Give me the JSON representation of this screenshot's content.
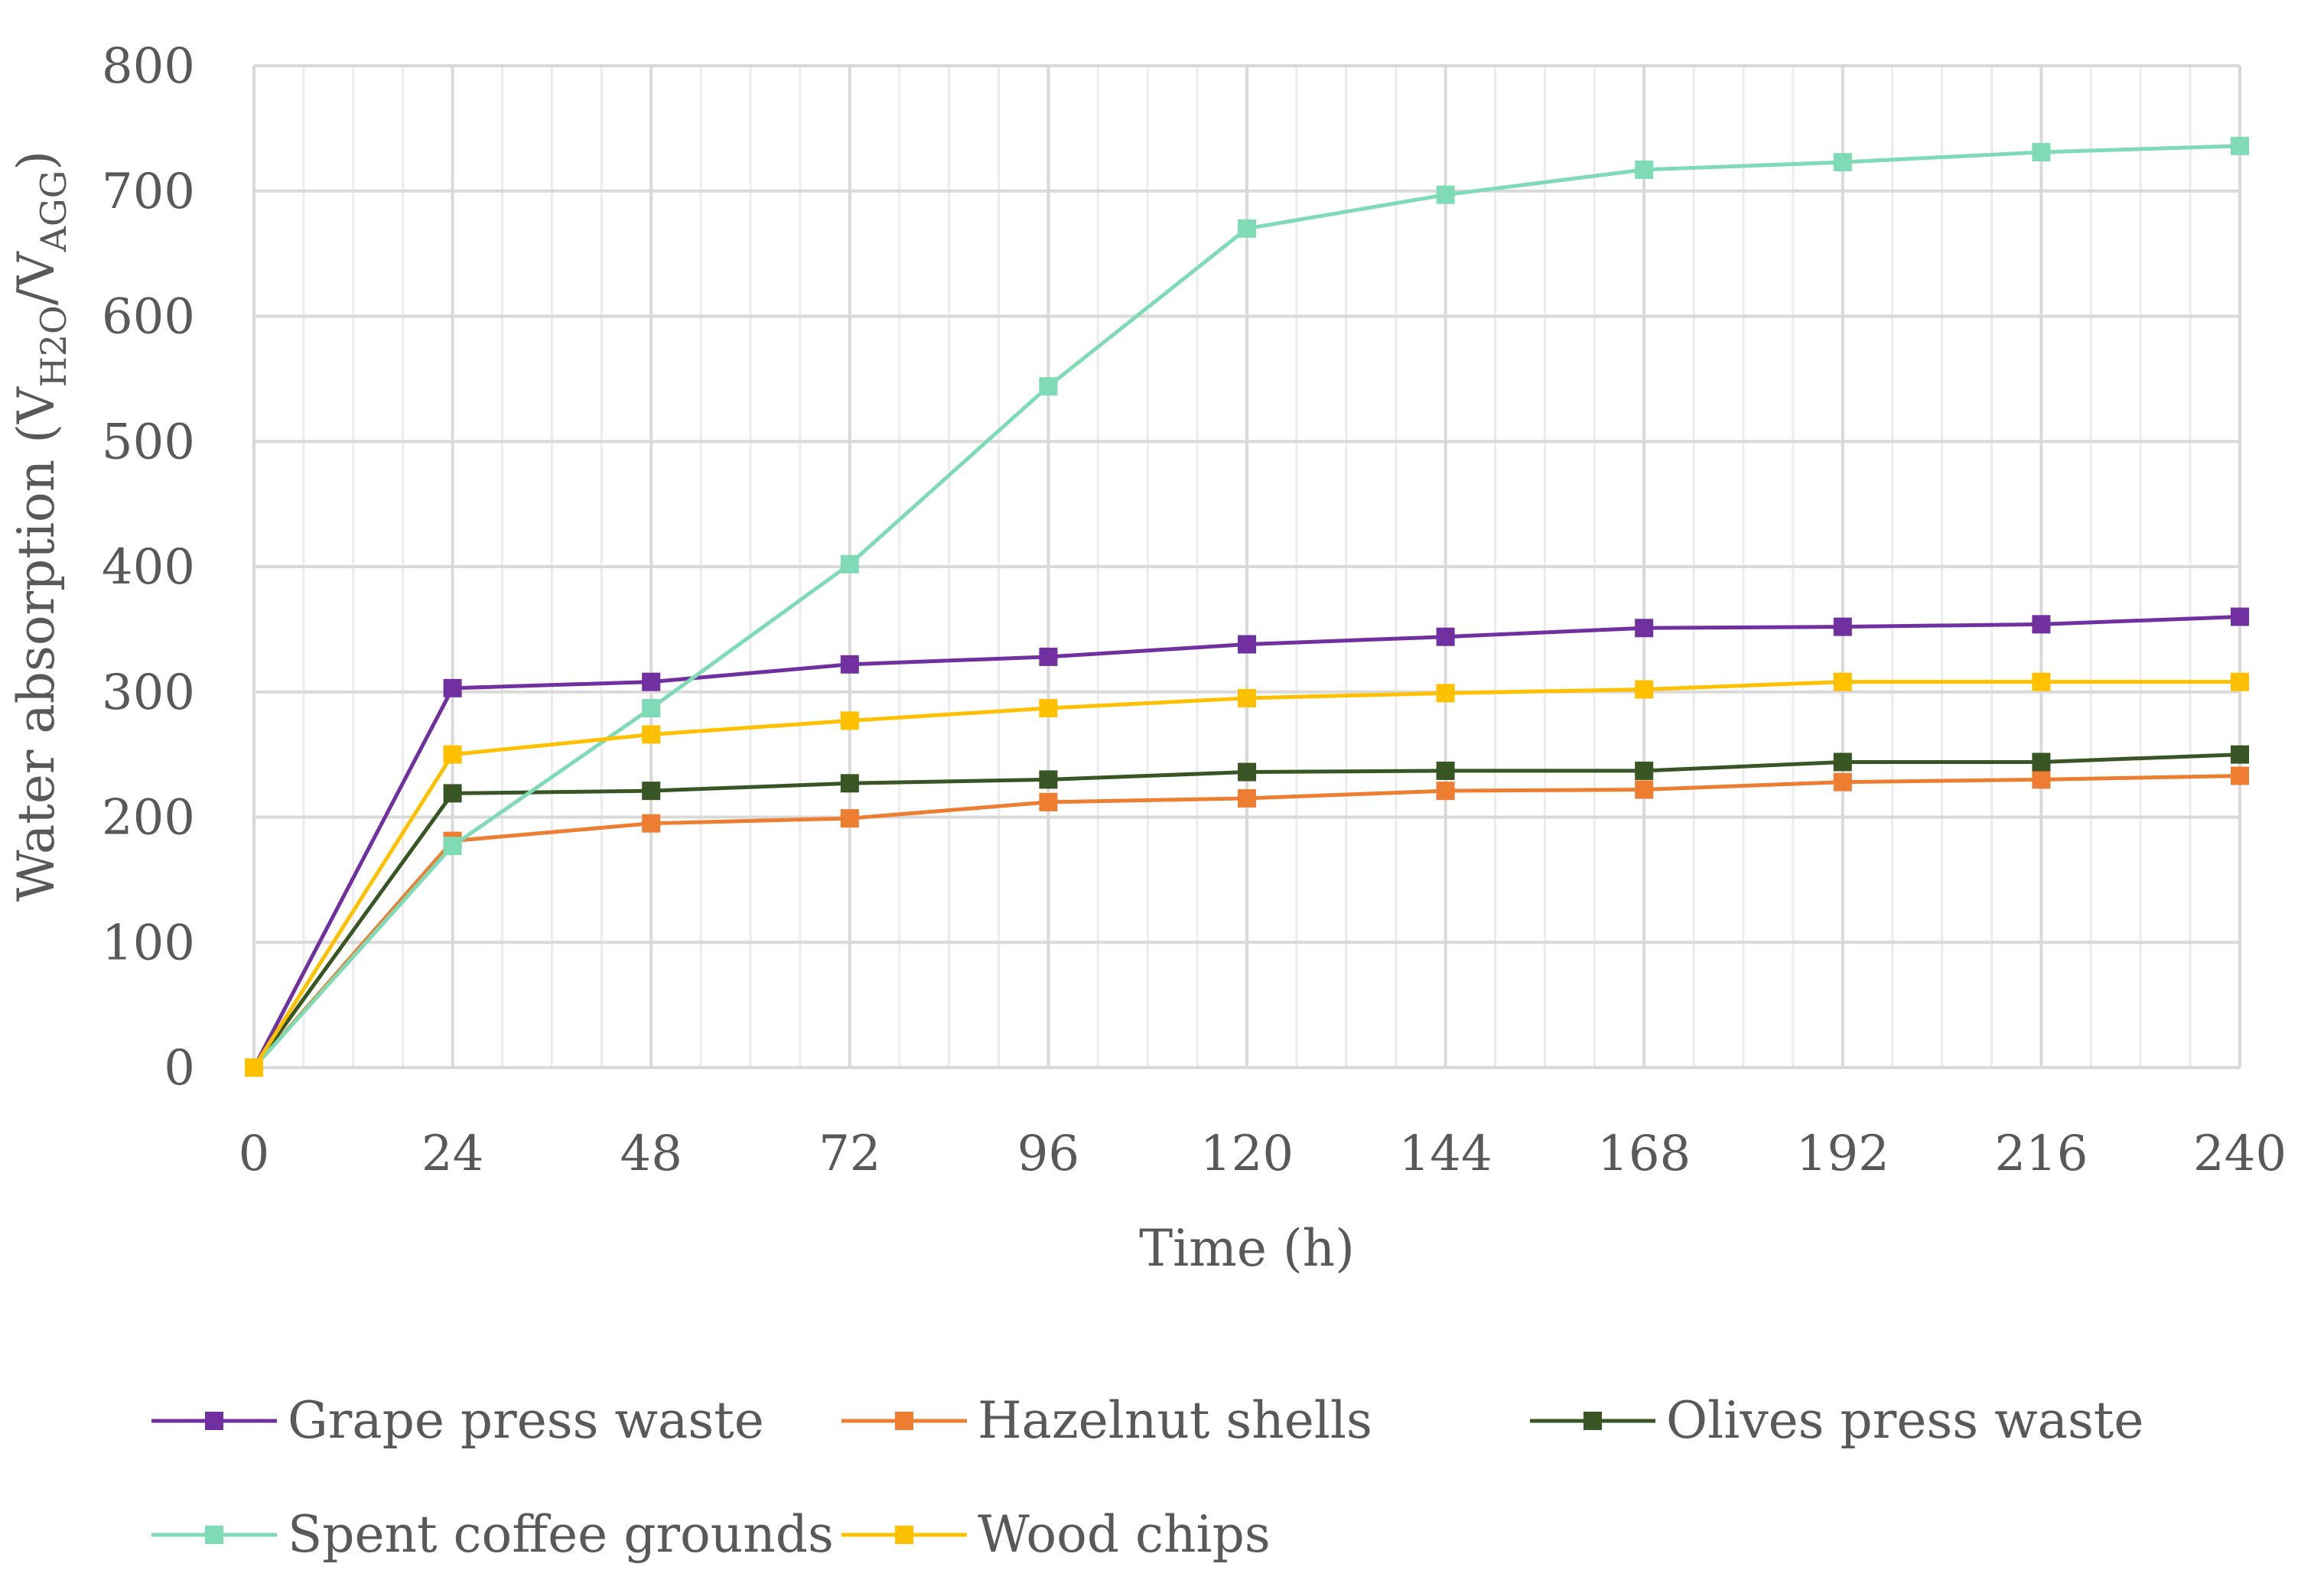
{
  "chart_data": {
    "type": "line",
    "xlabel": "Time (h)",
    "ylabel": {
      "main": "Water absorption (V",
      "sub1": "H2O",
      "mid": "/V",
      "sub2": "AGG",
      "end": ")"
    },
    "x": [
      0,
      24,
      48,
      72,
      96,
      120,
      144,
      168,
      192,
      216,
      240
    ],
    "x_ticks": [
      "0",
      "24",
      "48",
      "72",
      "96",
      "120",
      "144",
      "168",
      "192",
      "216",
      "240"
    ],
    "y_ticks": [
      "0",
      "100",
      "200",
      "300",
      "400",
      "500",
      "600",
      "700",
      "800"
    ],
    "xlim": [
      0,
      240
    ],
    "ylim": [
      0,
      800
    ],
    "grid": true,
    "legend_position": "bottom",
    "series": [
      {
        "name": "Grape press waste",
        "color": "#7030a0",
        "values": [
          0,
          303,
          308,
          322,
          328,
          338,
          344,
          351,
          352,
          354,
          360
        ]
      },
      {
        "name": "Hazelnut shells",
        "color": "#ed7d31",
        "values": [
          0,
          181,
          195,
          199,
          212,
          215,
          221,
          222,
          228,
          230,
          233
        ]
      },
      {
        "name": "Olives press waste",
        "color": "#375623",
        "values": [
          0,
          219,
          221,
          227,
          230,
          236,
          237,
          237,
          244,
          244,
          250
        ]
      },
      {
        "name": "Spent coffee grounds",
        "color": "#7fdbb6",
        "values": [
          0,
          177,
          287,
          402,
          544,
          670,
          697,
          717,
          723,
          731,
          736
        ]
      },
      {
        "name": "Wood chips",
        "color": "#ffc000",
        "values": [
          0,
          250,
          266,
          277,
          287,
          295,
          299,
          302,
          308,
          308,
          308
        ]
      }
    ]
  }
}
